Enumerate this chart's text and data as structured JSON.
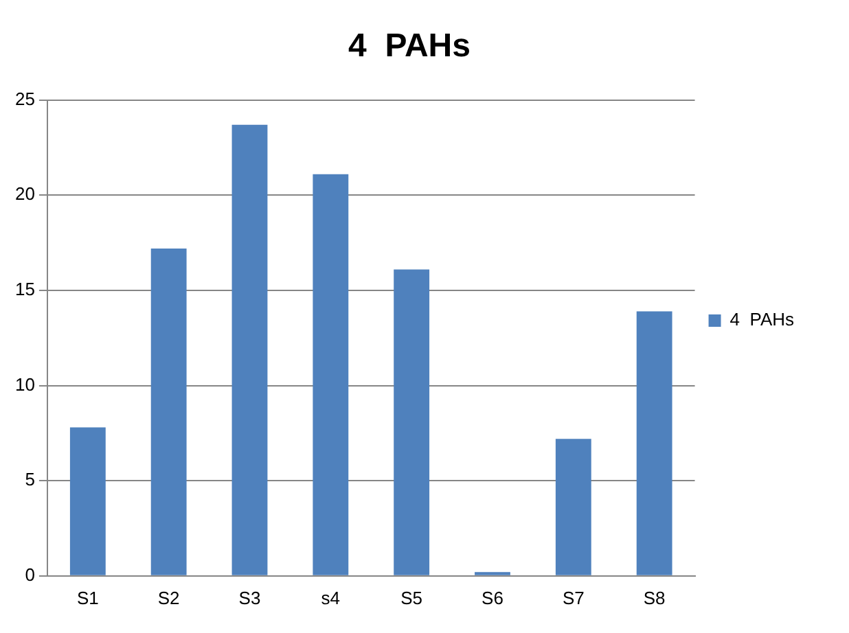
{
  "chart_data": {
    "type": "bar",
    "title": "4  PAHs",
    "categories": [
      "S1",
      "S2",
      "S3",
      "s4",
      "S5",
      "S6",
      "S7",
      "S8"
    ],
    "series": [
      {
        "name": "4  PAHs",
        "color": "#4f81bd",
        "values": [
          7.8,
          17.2,
          23.7,
          21.1,
          16.1,
          0.2,
          7.2,
          13.9
        ]
      }
    ],
    "ylim": [
      0,
      25
    ],
    "yticks": [
      0,
      5,
      10,
      15,
      20,
      25
    ],
    "grid": "y",
    "legend": "right"
  }
}
